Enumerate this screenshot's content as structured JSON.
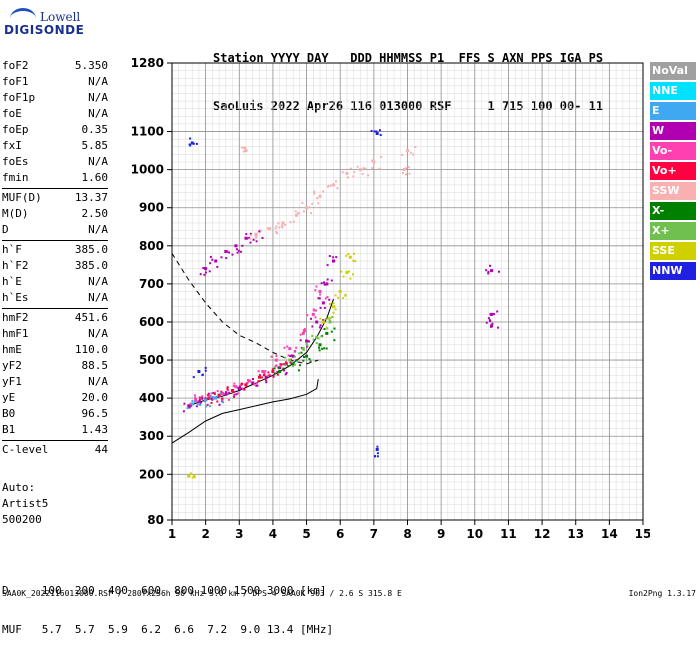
{
  "logo": {
    "line1": "Lowell",
    "line2": "DIGISONDE"
  },
  "header": {
    "line1": "Station YYYY DAY   DDD HHMMSS P1  FFS S AXN PPS IGA PS",
    "line2": "SaoLuis 2022 Apr26 116 013000 RSF     1 715 100 00- 11"
  },
  "params": [
    {
      "group": [
        {
          "k": "foF2",
          "v": "5.350"
        },
        {
          "k": "foF1",
          "v": "N/A"
        },
        {
          "k": "foF1p",
          "v": "N/A"
        },
        {
          "k": "foE",
          "v": "N/A"
        },
        {
          "k": "foEp",
          "v": "0.35"
        },
        {
          "k": "fxI",
          "v": "5.85"
        },
        {
          "k": "foEs",
          "v": "N/A"
        },
        {
          "k": "fmin",
          "v": "1.60"
        }
      ]
    },
    {
      "group": [
        {
          "k": "MUF(D)",
          "v": "13.37"
        },
        {
          "k": "M(D)",
          "v": "2.50"
        },
        {
          "k": "D",
          "v": "N/A"
        }
      ]
    },
    {
      "group": [
        {
          "k": "h`F",
          "v": "385.0"
        },
        {
          "k": "h`F2",
          "v": "385.0"
        },
        {
          "k": "h`E",
          "v": "N/A"
        },
        {
          "k": "h`Es",
          "v": "N/A"
        }
      ]
    },
    {
      "group": [
        {
          "k": "hmF2",
          "v": "451.6"
        },
        {
          "k": "hmF1",
          "v": "N/A"
        },
        {
          "k": "hmE",
          "v": "110.0"
        },
        {
          "k": "yF2",
          "v": "88.5"
        },
        {
          "k": "yF1",
          "v": "N/A"
        },
        {
          "k": "yE",
          "v": "20.0"
        },
        {
          "k": "B0",
          "v": "96.5"
        },
        {
          "k": "B1",
          "v": "1.43"
        }
      ]
    },
    {
      "group": [
        {
          "k": "C-level",
          "v": "44"
        }
      ]
    }
  ],
  "auto": {
    "line1": "Auto:",
    "line2": "Artist5",
    "line3": "500200"
  },
  "bottom": {
    "d_line": "D     100  200  400  600  800 1000 1500 3000 [km]",
    "muf_line": "MUF   5.7  5.7  5.9  6.2  6.6  7.2  9.0 13.4 [MHz]"
  },
  "footer": "SAA0K_2022116013000.RSF / 280fx256h 50 kHz 5.0 km / DPS-4 SAA0K 903 / 2.6 S 315.8 E",
  "version": "Ion2Png 1.3.17",
  "legend": [
    {
      "label": "NoVal",
      "color": "#a0a0a0"
    },
    {
      "label": "NNE",
      "color": "#00e0ff"
    },
    {
      "label": "E",
      "color": "#40a8f0"
    },
    {
      "label": "W",
      "color": "#b000b0"
    },
    {
      "label": "Vo-",
      "color": "#ff40b0"
    },
    {
      "label": "Vo+",
      "color": "#ff0040"
    },
    {
      "label": "SSW",
      "color": "#f8b0b0"
    },
    {
      "label": "X-",
      "color": "#008000"
    },
    {
      "label": "X+",
      "color": "#70c050"
    },
    {
      "label": "SSE",
      "color": "#d0d000"
    },
    {
      "label": "NNW",
      "color": "#2020e0"
    }
  ],
  "chart_data": {
    "type": "scatter",
    "xlim": [
      1,
      15
    ],
    "ylim": [
      80,
      1280
    ],
    "x_ticks": [
      1,
      2,
      3,
      4,
      5,
      6,
      7,
      8,
      9,
      10,
      11,
      12,
      13,
      14,
      15
    ],
    "y_ticks": [
      80,
      200,
      300,
      400,
      500,
      600,
      700,
      800,
      900,
      1000,
      1100,
      1280
    ],
    "grid": true,
    "legend_position": "right",
    "series": [
      {
        "color": "#b000b0",
        "points": [
          [
            1.5,
            380
          ],
          [
            1.8,
            390
          ],
          [
            2.2,
            400
          ],
          [
            2.6,
            410
          ],
          [
            3.0,
            425
          ],
          [
            3.4,
            440
          ],
          [
            3.8,
            455
          ],
          [
            4.2,
            480
          ],
          [
            4.6,
            510
          ],
          [
            5.0,
            550
          ],
          [
            5.3,
            600
          ],
          [
            5.5,
            650
          ],
          [
            5.6,
            700
          ],
          [
            5.8,
            760
          ],
          [
            2.0,
            740
          ],
          [
            2.3,
            760
          ],
          [
            2.6,
            785
          ],
          [
            2.9,
            800
          ],
          [
            3.2,
            820
          ],
          [
            3.5,
            830
          ],
          [
            10.5,
            735
          ],
          [
            10.5,
            620
          ],
          [
            10.5,
            590
          ]
        ]
      },
      {
        "color": "#ff40b0",
        "points": [
          [
            1.7,
            395
          ],
          [
            2.1,
            402
          ],
          [
            2.5,
            412
          ],
          [
            2.9,
            430
          ],
          [
            3.3,
            445
          ],
          [
            3.7,
            470
          ],
          [
            4.1,
            500
          ],
          [
            4.5,
            530
          ],
          [
            4.9,
            570
          ],
          [
            5.2,
            620
          ],
          [
            5.4,
            680
          ]
        ]
      },
      {
        "color": "#ff0040",
        "points": [
          [
            2.0,
            398
          ],
          [
            2.4,
            408
          ],
          [
            2.8,
            420
          ],
          [
            3.2,
            435
          ],
          [
            3.6,
            455
          ],
          [
            4.0,
            470
          ],
          [
            4.4,
            490
          ]
        ]
      },
      {
        "color": "#f8b0b0",
        "points": [
          [
            3.5,
            830
          ],
          [
            3.9,
            845
          ],
          [
            4.3,
            860
          ],
          [
            4.7,
            880
          ],
          [
            5.0,
            900
          ],
          [
            5.4,
            930
          ],
          [
            5.8,
            960
          ],
          [
            6.2,
            990
          ],
          [
            6.6,
            1000
          ],
          [
            7.0,
            1020
          ],
          [
            7.9,
            1000
          ],
          [
            8.0,
            1050
          ],
          [
            3.2,
            1050
          ]
        ]
      },
      {
        "color": "#008000",
        "points": [
          [
            4.2,
            470
          ],
          [
            4.6,
            490
          ],
          [
            5.0,
            510
          ],
          [
            5.4,
            540
          ],
          [
            5.6,
            570
          ]
        ]
      },
      {
        "color": "#70c050",
        "points": [
          [
            4.5,
            500
          ],
          [
            4.9,
            530
          ],
          [
            5.3,
            560
          ],
          [
            5.7,
            600
          ]
        ]
      },
      {
        "color": "#d0d000",
        "points": [
          [
            5.5,
            600
          ],
          [
            5.8,
            640
          ],
          [
            6.0,
            680
          ],
          [
            6.2,
            730
          ],
          [
            6.3,
            770
          ],
          [
            1.5,
            195
          ]
        ]
      },
      {
        "color": "#40a8f0",
        "points": [
          [
            1.6,
            385
          ],
          [
            2.0,
            395
          ],
          [
            2.3,
            400
          ]
        ]
      },
      {
        "color": "#2020e0",
        "points": [
          [
            1.6,
            1070
          ],
          [
            7.1,
            1095
          ],
          [
            7.1,
            265
          ],
          [
            1.8,
            470
          ]
        ]
      }
    ],
    "curves": [
      {
        "style": "solid",
        "points": [
          [
            1,
            282
          ],
          [
            1.5,
            310
          ],
          [
            2,
            340
          ],
          [
            2.5,
            360
          ],
          [
            3,
            370
          ],
          [
            3.5,
            380
          ],
          [
            4,
            390
          ],
          [
            4.5,
            398
          ],
          [
            5,
            410
          ],
          [
            5.3,
            425
          ],
          [
            5.35,
            450
          ]
        ]
      },
      {
        "style": "dashed",
        "points": [
          [
            1,
            780
          ],
          [
            1.5,
            710
          ],
          [
            2,
            650
          ],
          [
            2.5,
            600
          ],
          [
            3,
            565
          ],
          [
            3.5,
            545
          ],
          [
            4,
            520
          ],
          [
            4.5,
            500
          ],
          [
            5,
            490
          ],
          [
            5.35,
            500
          ]
        ]
      },
      {
        "style": "solid",
        "points": [
          [
            1.5,
            380
          ],
          [
            2,
            395
          ],
          [
            2.5,
            405
          ],
          [
            3,
            420
          ],
          [
            3.5,
            440
          ],
          [
            4,
            460
          ],
          [
            4.5,
            485
          ],
          [
            5,
            520
          ],
          [
            5.3,
            560
          ],
          [
            5.6,
            610
          ],
          [
            5.8,
            660
          ]
        ]
      }
    ]
  }
}
